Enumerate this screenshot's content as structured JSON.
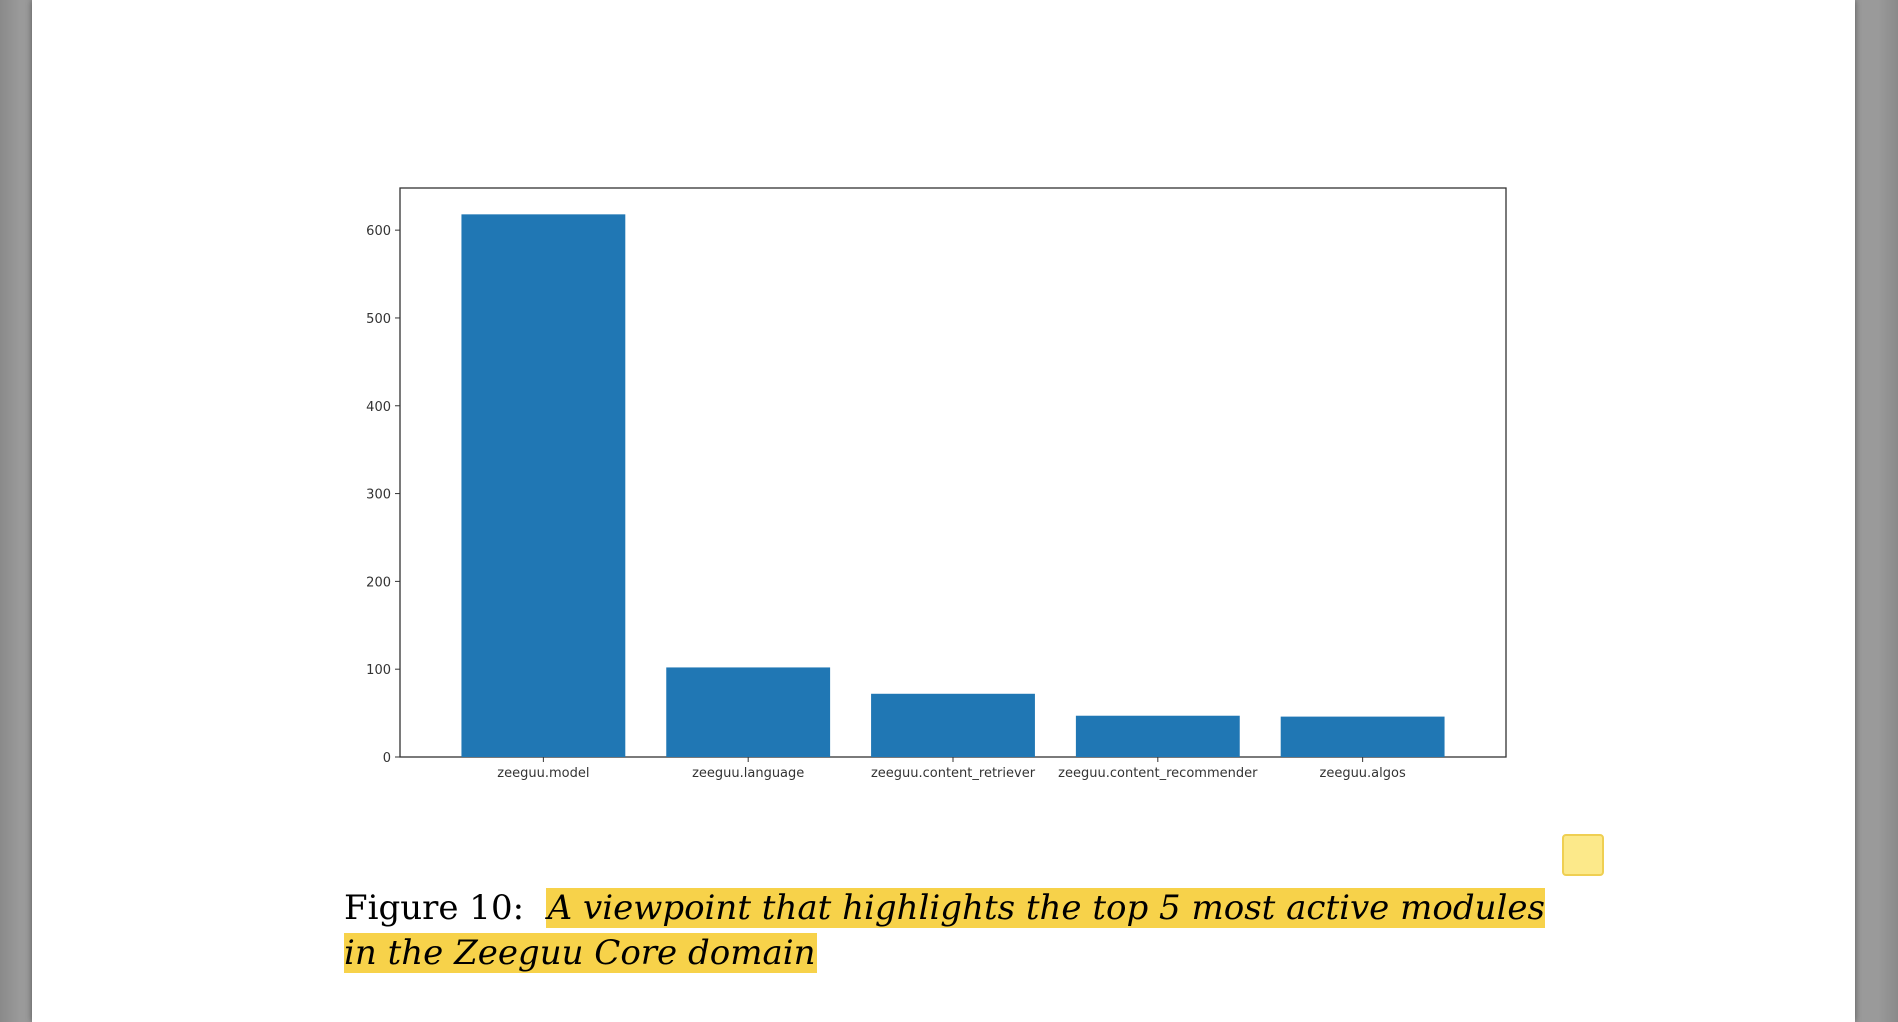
{
  "caption": {
    "label": "Figure 10:",
    "text": "A viewpoint that highlights the top 5 most active modules in the Zeeguu Core domain",
    "highlight_color": "#f7d24a"
  },
  "annotation": {
    "icon": "sticky-note-icon",
    "color": "#fce98a"
  },
  "chart_data": {
    "type": "bar",
    "categories": [
      "zeeguu.model",
      "zeeguu.language",
      "zeeguu.content_retriever",
      "zeeguu.content_recommender",
      "zeeguu.algos"
    ],
    "values": [
      618,
      102,
      72,
      47,
      46
    ],
    "yticks": [
      0,
      100,
      200,
      300,
      400,
      500,
      600
    ],
    "ylim": [
      0,
      648
    ],
    "bar_color": "#2077b4",
    "title": "",
    "xlabel": "",
    "ylabel": "",
    "grid": false,
    "legend": false
  }
}
